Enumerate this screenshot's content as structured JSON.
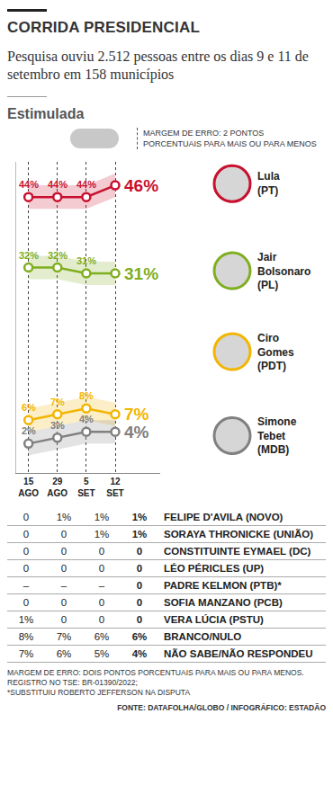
{
  "header": {
    "title": "CORRIDA PRESIDENCIAL",
    "subtitle": "Pesquisa ouviu 2.512 pessoas entre os dias 9 e 11 de setembro em 158 municípios",
    "section": "Estimulada",
    "legend_note": "MARGEM DE ERRO: 2 PONTOS PORCENTUAIS PARA MAIS OU PARA MENOS"
  },
  "chart_data": {
    "type": "line",
    "categories": [
      "15 AGO",
      "29 AGO",
      "5 SET",
      "12 SET"
    ],
    "series": [
      {
        "name": "Lula (PT)",
        "color": "#c8102e",
        "values": [
          44,
          44,
          44,
          46
        ],
        "value_labels": [
          "44%",
          "44%",
          "44%",
          "46%"
        ]
      },
      {
        "name": "Jair Bolsonaro (PL)",
        "color": "#7fae1f",
        "values": [
          32,
          32,
          31,
          31
        ],
        "value_labels": [
          "32%",
          "32%",
          "31%",
          "31%"
        ]
      },
      {
        "name": "Ciro Gomes (PDT)",
        "color": "#f2b500",
        "values": [
          6,
          7,
          8,
          7
        ],
        "value_labels": [
          "6%",
          "7%",
          "8%",
          "7%"
        ]
      },
      {
        "name": "Simone Tebet (MDB)",
        "color": "#808080",
        "values": [
          2,
          3,
          4,
          4
        ],
        "value_labels": [
          "2%",
          "3%",
          "4%",
          "4%"
        ]
      }
    ],
    "error": 2,
    "ylim": [
      -3,
      50
    ],
    "yticks": [],
    "grid": true,
    "tick_labels": "x",
    "data_labels": true,
    "marker": "circle"
  },
  "table": {
    "rows": [
      [
        "0",
        "1%",
        "1%",
        "1%",
        "FELIPE D'AVILA (NOVO)"
      ],
      [
        "0",
        "0",
        "1%",
        "1%",
        "SORAYA THRONICKE (UNIÃO)"
      ],
      [
        "0",
        "0",
        "0",
        "0",
        "CONSTITUINTE EYMAEL (DC)"
      ],
      [
        "0",
        "0",
        "0",
        "0",
        "LÉO PÉRICLES (UP)"
      ],
      [
        "–",
        "–",
        "–",
        "0",
        "PADRE KELMON (PTB)*"
      ],
      [
        "0",
        "0",
        "0",
        "0",
        "SOFIA MANZANO (PCB)"
      ],
      [
        "1%",
        "0",
        "0",
        "0",
        "VERA LÚCIA (PSTU)"
      ],
      [
        "8%",
        "7%",
        "6%",
        "6%",
        "BRANCO/NULO"
      ],
      [
        "7%",
        "6%",
        "5%",
        "4%",
        "NÃO SABE/NÃO RESPONDEU"
      ]
    ]
  },
  "footer": {
    "notes": [
      "MARGEM DE ERRO: DOIS PONTOS PORCENTUAIS PARA MAIS OU PARA MENOS.",
      "REGISTRO NO TSE: BR-01390/2022;",
      "*SUBSTITUIU ROBERTO JEFFERSON NA DISPUTA"
    ],
    "source": "FONTE: DATAFOLHA/GLOBO / INFOGRÁFICO: ESTADÃO"
  }
}
